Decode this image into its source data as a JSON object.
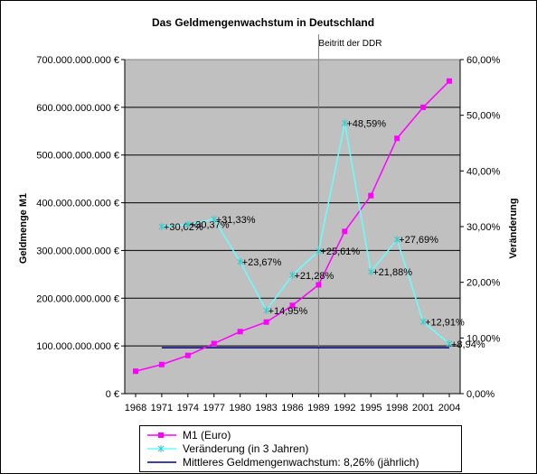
{
  "chart_data": {
    "type": "line",
    "title": "Das Geldmengenwachstum in Deutschland",
    "ylabel": "Geldmenge M1",
    "y2label": "Veränderung",
    "annotation": "Beitritt der DDR",
    "annotation_x": 1989,
    "x_ticks": [
      "1968",
      "1971",
      "1974",
      "1977",
      "1980",
      "1983",
      "1986",
      "1989",
      "1992",
      "1995",
      "1998",
      "2001",
      "2004"
    ],
    "y_ticks": [
      "0 €",
      "100.000.000.000 €",
      "200.000.000.000 €",
      "300.000.000.000 €",
      "400.000.000.000 €",
      "500.000.000.000 €",
      "600.000.000.000 €",
      "700.000.000.000 €"
    ],
    "y2_ticks": [
      "0,00%",
      "10,00%",
      "20,00%",
      "30,00%",
      "40,00%",
      "50,00%",
      "60,00%"
    ],
    "ylim": [
      0,
      700000000000
    ],
    "y2lim": [
      0,
      0.6
    ],
    "series": [
      {
        "name": "M1 (Euro)",
        "axis": "left",
        "color": "#ff00ff",
        "x": [
          1968,
          1971,
          1974,
          1977,
          1980,
          1983,
          1986,
          1989,
          1992,
          1995,
          1998,
          2001,
          2004
        ],
        "values": [
          47000000000,
          61000000000,
          80000000000,
          105000000000,
          130000000000,
          150000000000,
          185000000000,
          228000000000,
          340000000000,
          415000000000,
          535000000000,
          600000000000,
          655000000000
        ]
      },
      {
        "name": "Veränderung (in 3 Jahren)",
        "axis": "right",
        "color": "#66ffff",
        "x": [
          1971,
          1974,
          1977,
          1980,
          1983,
          1986,
          1989,
          1992,
          1995,
          1998,
          2001,
          2004
        ],
        "values": [
          0.3002,
          0.3037,
          0.3133,
          0.2367,
          0.1495,
          0.2128,
          0.2561,
          0.4859,
          0.2188,
          0.2769,
          0.1291,
          0.0894
        ],
        "labels": [
          "+30,02%",
          "+30,37%",
          "+31,33%",
          "+23,67%",
          "+14,95%",
          "+21,28%",
          "+25,61%",
          "+48,59%",
          "+21,88%",
          "+27,69%",
          "+12,91%",
          "+8,94%"
        ]
      },
      {
        "name": "Mittleres Geldmengenwachstum: 8,26% (jährlich)",
        "axis": "right",
        "color": "#000080",
        "x": [
          1971,
          2004
        ],
        "values": [
          0.0826,
          0.0826
        ]
      }
    ]
  }
}
